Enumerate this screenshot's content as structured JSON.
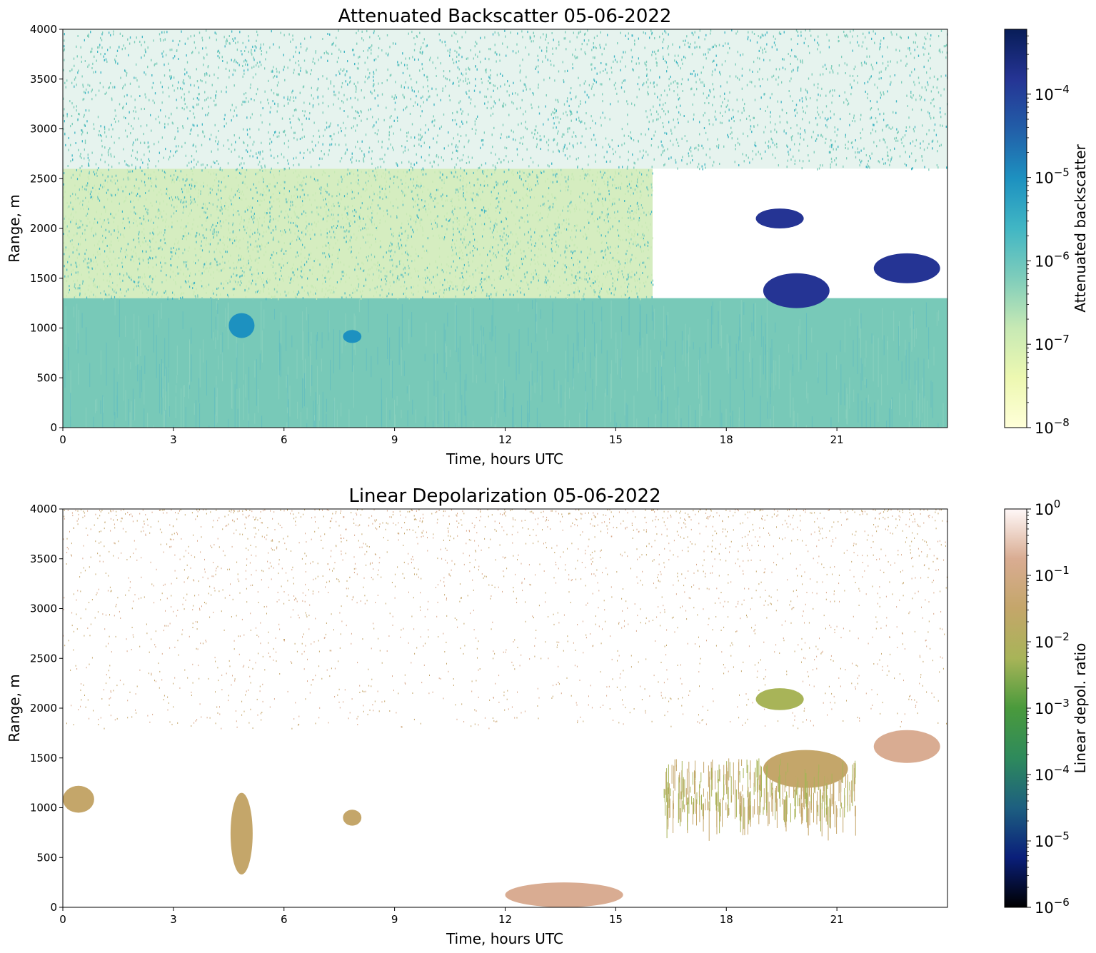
{
  "chart_data": [
    {
      "type": "heatmap",
      "title": "Attenuated Backscatter 05-06-2022",
      "xlabel": "Time, hours UTC",
      "ylabel": "Range, m",
      "xlim": [
        0,
        24
      ],
      "ylim": [
        0,
        4000
      ],
      "x_ticks": [
        "0",
        "3",
        "6",
        "9",
        "12",
        "15",
        "18",
        "21"
      ],
      "y_ticks": [
        "0",
        "500",
        "1000",
        "1500",
        "2000",
        "2500",
        "3000",
        "3500",
        "4000"
      ],
      "colorbar": {
        "label": "Attenuated backscatter",
        "scale": "log",
        "range": [
          1e-08,
          0.0006
        ],
        "ticks": [
          {
            "base": "10",
            "exp": "−8",
            "value": 1e-08
          },
          {
            "base": "10",
            "exp": "−7",
            "value": 1e-07
          },
          {
            "base": "10",
            "exp": "−6",
            "value": 1e-06
          },
          {
            "base": "10",
            "exp": "−5",
            "value": 1e-05
          },
          {
            "base": "10",
            "exp": "−4",
            "value": 0.0001
          }
        ],
        "colors": [
          "#ffffd9",
          "#edf8b1",
          "#c7e9b4",
          "#7fcdbb",
          "#41b6c4",
          "#1d91c0",
          "#225ea8",
          "#253494",
          "#081d58"
        ]
      },
      "regions": [
        {
          "name": "boundary layer",
          "x": [
            0,
            24
          ],
          "y": [
            0,
            1300
          ],
          "value": 8e-07
        },
        {
          "name": "residual layer",
          "x": [
            0,
            16
          ],
          "y": [
            1300,
            2600
          ],
          "value": 2e-07
        },
        {
          "name": "free troposphere noise",
          "x": [
            0,
            24
          ],
          "y": [
            2600,
            4000
          ],
          "value": 5e-07
        },
        {
          "name": "cloud",
          "x": [
            19.0,
            20.8
          ],
          "y": [
            1200,
            1550
          ],
          "value": 0.0003
        },
        {
          "name": "cloud",
          "x": [
            22.0,
            23.8
          ],
          "y": [
            1450,
            1750
          ],
          "value": 0.0003
        },
        {
          "name": "cloud",
          "x": [
            18.8,
            20.1
          ],
          "y": [
            2000,
            2200
          ],
          "value": 0.0001
        },
        {
          "name": "aerosol plume",
          "x": [
            4.5,
            5.2
          ],
          "y": [
            900,
            1150
          ],
          "value": 1e-05
        },
        {
          "name": "aerosol plume",
          "x": [
            7.6,
            8.1
          ],
          "y": [
            850,
            980
          ],
          "value": 6e-06
        }
      ]
    },
    {
      "type": "heatmap",
      "title": "Linear Depolarization 05-06-2022",
      "xlabel": "Time, hours UTC",
      "ylabel": "Range, m",
      "xlim": [
        0,
        24
      ],
      "ylim": [
        0,
        4000
      ],
      "x_ticks": [
        "0",
        "3",
        "6",
        "9",
        "12",
        "15",
        "18",
        "21"
      ],
      "y_ticks": [
        "0",
        "500",
        "1000",
        "1500",
        "2000",
        "2500",
        "3000",
        "3500",
        "4000"
      ],
      "colorbar": {
        "label": "Linear depol. ratio",
        "scale": "log",
        "range": [
          1e-06,
          1
        ],
        "ticks": [
          {
            "base": "10",
            "exp": "−6",
            "value": 1e-06
          },
          {
            "base": "10",
            "exp": "−5",
            "value": 1e-05
          },
          {
            "base": "10",
            "exp": "−4",
            "value": 0.0001
          },
          {
            "base": "10",
            "exp": "−3",
            "value": 0.001
          },
          {
            "base": "10",
            "exp": "−2",
            "value": 0.01
          },
          {
            "base": "10",
            "exp": "−1",
            "value": 0.1
          },
          {
            "base": "10",
            "exp": "0",
            "value": 1
          }
        ],
        "colors": [
          "#000000",
          "#0a1f7a",
          "#1d5f80",
          "#2e8a5c",
          "#4a9a3c",
          "#a8b458",
          "#c4a66a",
          "#d9ac92",
          "#fff8f8"
        ]
      },
      "regions": [
        {
          "name": "aerosol layer",
          "x": [
            0,
            0.85
          ],
          "y": [
            950,
            1220
          ],
          "value": 0.05
        },
        {
          "name": "plume",
          "x": [
            4.55,
            5.15
          ],
          "y": [
            330,
            1150
          ],
          "value": 0.05
        },
        {
          "name": "plume",
          "x": [
            7.6,
            8.1
          ],
          "y": [
            820,
            980
          ],
          "value": 0.05
        },
        {
          "name": "near-surface",
          "x": [
            12.0,
            15.2
          ],
          "y": [
            0,
            250
          ],
          "value": 0.08
        },
        {
          "name": "cloud",
          "x": [
            18.8,
            20.1
          ],
          "y": [
            1980,
            2200
          ],
          "value": 0.01
        },
        {
          "name": "cloud",
          "x": [
            19.0,
            21.3
          ],
          "y": [
            1200,
            1580
          ],
          "value": 0.02
        },
        {
          "name": "cloud",
          "x": [
            22.0,
            23.8
          ],
          "y": [
            1450,
            1780
          ],
          "value": 0.3
        },
        {
          "name": "precipitation fall streaks",
          "x": [
            16.3,
            21.5
          ],
          "y": [
            650,
            1500
          ],
          "value": 0.06
        }
      ]
    }
  ]
}
